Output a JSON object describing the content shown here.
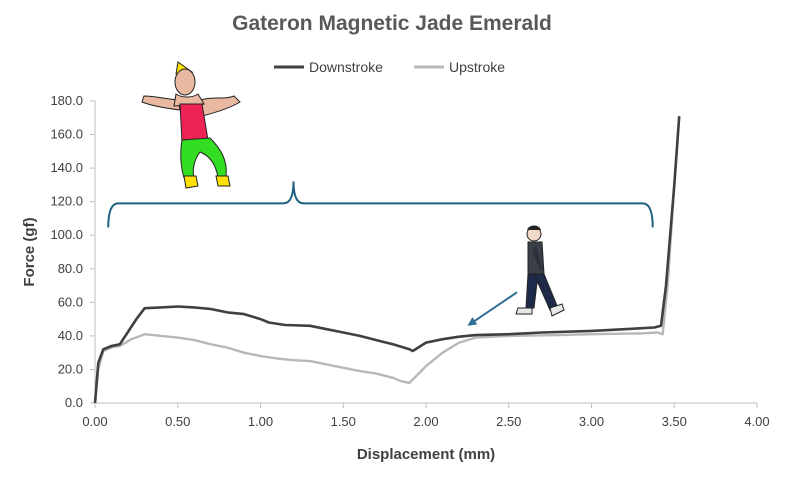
{
  "chart_data": {
    "type": "line",
    "title": "Gateron Magnetic Jade Emerald",
    "xlabel": "Displacement (mm)",
    "ylabel": "Force (gf)",
    "xlim": [
      0,
      4
    ],
    "ylim": [
      0,
      180
    ],
    "x_ticks": [
      "0.00",
      "0.50",
      "1.00",
      "1.50",
      "2.00",
      "2.50",
      "3.00",
      "3.50",
      "4.00"
    ],
    "y_ticks": [
      "0.0",
      "20.0",
      "40.0",
      "60.0",
      "80.0",
      "100.0",
      "120.0",
      "140.0",
      "160.0",
      "180.0"
    ],
    "grid": false,
    "legend_position": "top-center",
    "series": [
      {
        "name": "Downstroke",
        "color": "#404040",
        "points": [
          [
            0.0,
            0
          ],
          [
            0.02,
            24
          ],
          [
            0.05,
            32
          ],
          [
            0.1,
            34
          ],
          [
            0.15,
            35
          ],
          [
            0.25,
            50
          ],
          [
            0.3,
            56.5
          ],
          [
            0.4,
            57
          ],
          [
            0.5,
            57.5
          ],
          [
            0.6,
            57
          ],
          [
            0.7,
            56
          ],
          [
            0.8,
            54
          ],
          [
            0.9,
            53
          ],
          [
            1.0,
            50
          ],
          [
            1.05,
            48
          ],
          [
            1.15,
            46.5
          ],
          [
            1.3,
            46
          ],
          [
            1.4,
            44
          ],
          [
            1.5,
            42
          ],
          [
            1.6,
            40
          ],
          [
            1.7,
            37.5
          ],
          [
            1.8,
            35
          ],
          [
            1.9,
            32
          ],
          [
            1.92,
            31
          ],
          [
            2.0,
            36
          ],
          [
            2.1,
            38
          ],
          [
            2.2,
            39.5
          ],
          [
            2.3,
            40.5
          ],
          [
            2.5,
            41
          ],
          [
            2.7,
            42
          ],
          [
            3.0,
            43
          ],
          [
            3.2,
            44
          ],
          [
            3.38,
            45
          ],
          [
            3.42,
            46
          ],
          [
            3.45,
            70
          ],
          [
            3.5,
            130
          ],
          [
            3.53,
            171
          ]
        ]
      },
      {
        "name": "Upstroke",
        "color": "#b8b8b8",
        "points": [
          [
            0.0,
            0
          ],
          [
            0.02,
            20
          ],
          [
            0.05,
            31
          ],
          [
            0.1,
            33
          ],
          [
            0.15,
            34
          ],
          [
            0.22,
            38
          ],
          [
            0.3,
            41
          ],
          [
            0.4,
            40
          ],
          [
            0.5,
            39
          ],
          [
            0.6,
            37.5
          ],
          [
            0.7,
            35
          ],
          [
            0.8,
            33
          ],
          [
            0.9,
            30
          ],
          [
            1.0,
            28
          ],
          [
            1.1,
            26.5
          ],
          [
            1.2,
            25.5
          ],
          [
            1.3,
            25
          ],
          [
            1.4,
            23
          ],
          [
            1.5,
            21
          ],
          [
            1.6,
            19
          ],
          [
            1.7,
            17.5
          ],
          [
            1.8,
            15
          ],
          [
            1.85,
            13
          ],
          [
            1.9,
            12
          ],
          [
            2.0,
            22
          ],
          [
            2.1,
            30
          ],
          [
            2.2,
            36
          ],
          [
            2.3,
            39
          ],
          [
            2.5,
            40
          ],
          [
            2.8,
            40.5
          ],
          [
            3.0,
            41
          ],
          [
            3.3,
            41.5
          ],
          [
            3.4,
            42
          ],
          [
            3.43,
            41
          ],
          [
            3.46,
            70
          ],
          [
            3.5,
            130
          ],
          [
            3.53,
            170
          ]
        ]
      }
    ],
    "annotations": {
      "brace_x": [
        0.08,
        3.37
      ],
      "brace_y": 119,
      "arrow_from": [
        2.55,
        66
      ],
      "arrow_to": [
        2.25,
        46
      ]
    }
  },
  "legend": {
    "items": [
      {
        "label": "Downstroke",
        "color": "#404040"
      },
      {
        "label": "Upstroke",
        "color": "#b8b8b8"
      }
    ]
  },
  "colors": {
    "axis": "#bfbfbf",
    "brace": "#1f5f7f",
    "arrow": "#2e6f96"
  },
  "icons": {
    "left_figure": "muscular-man-icon",
    "right_figure": "walking-man-icon"
  }
}
